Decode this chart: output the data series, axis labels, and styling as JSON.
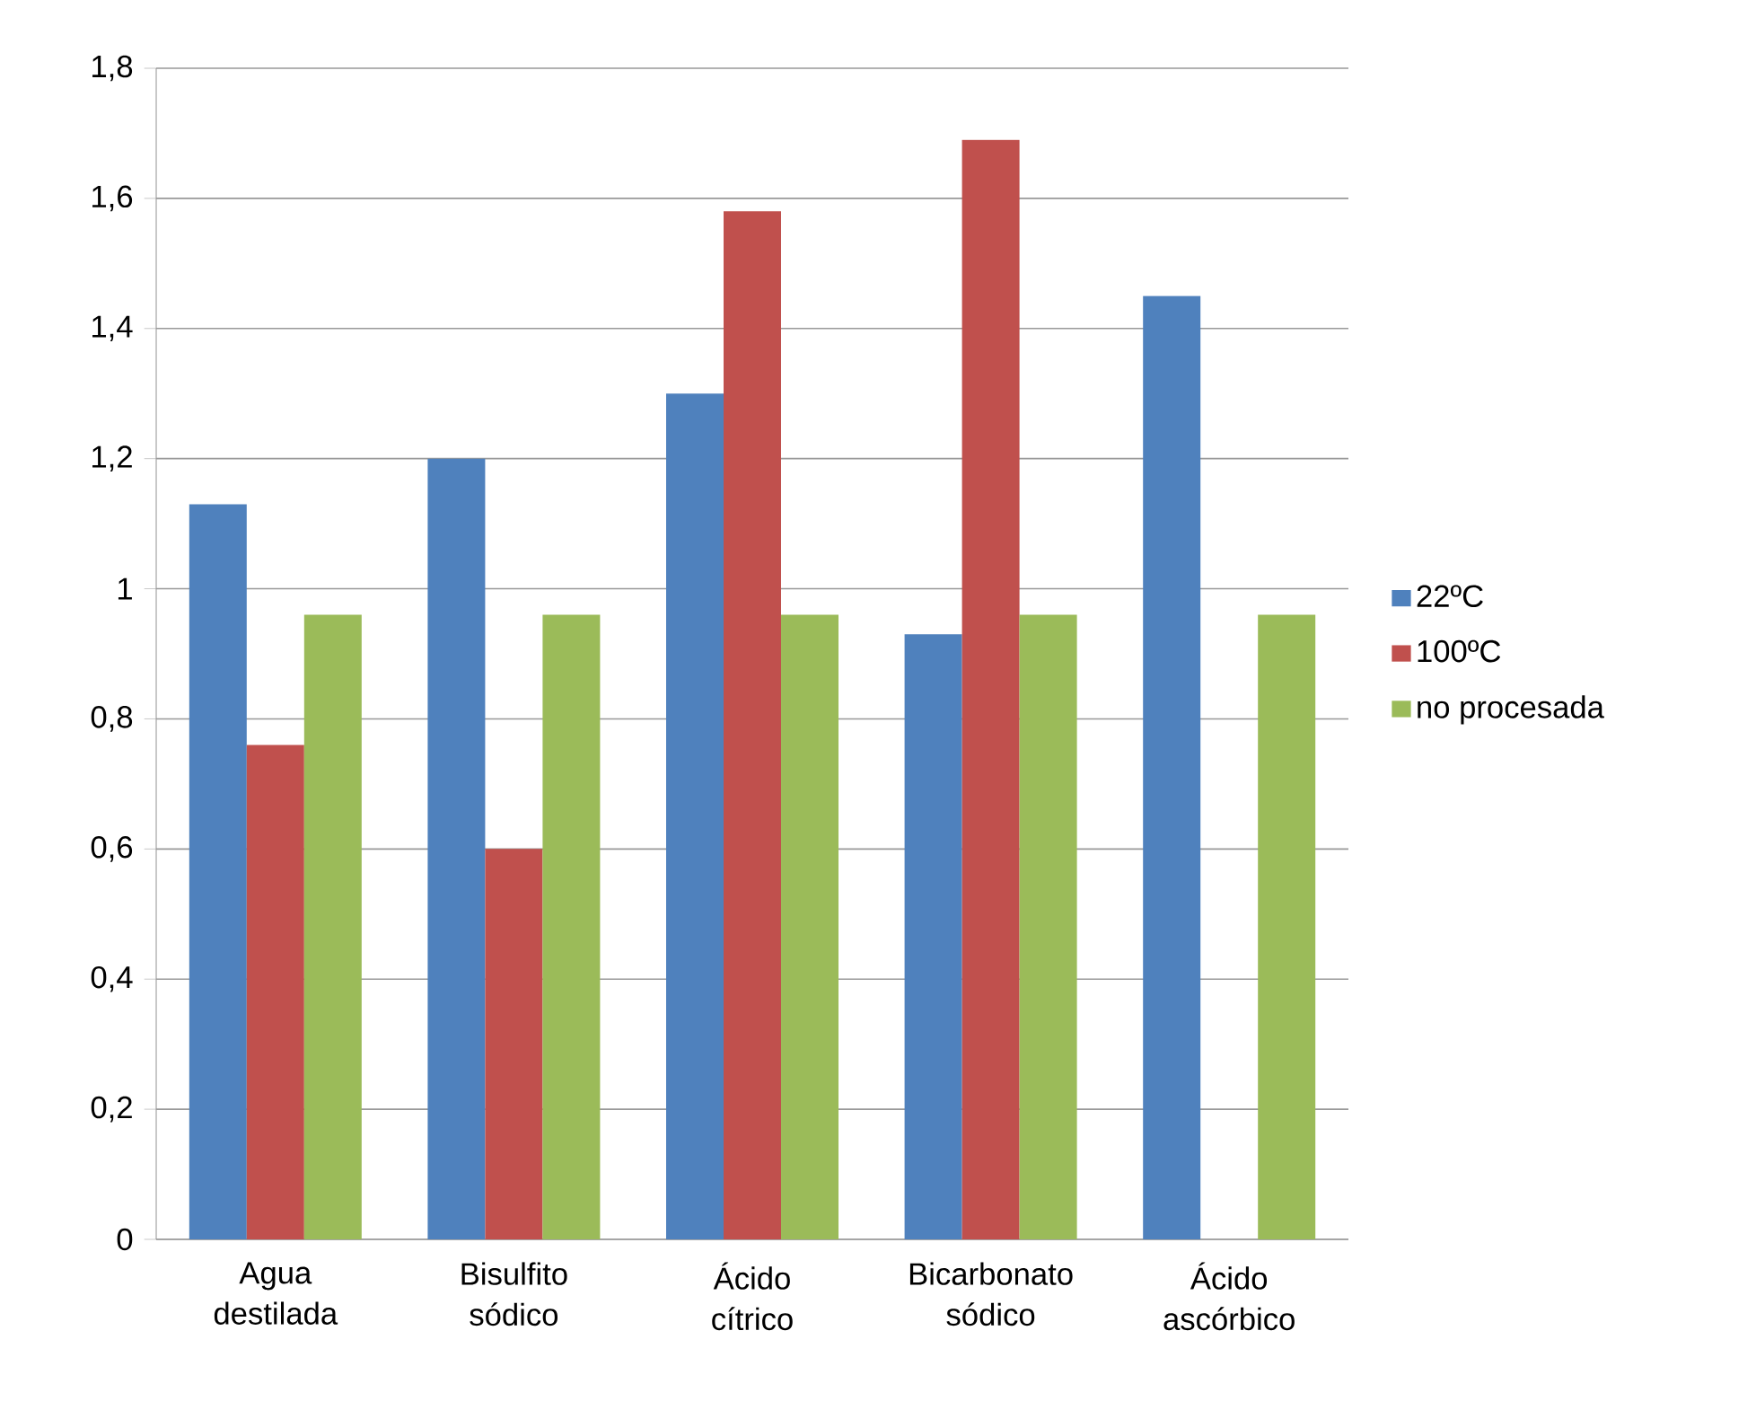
{
  "chart_data": {
    "type": "bar",
    "categories": [
      "Agua destilada",
      "Bisulfito sódico",
      "Ácido cítrico",
      "Bicarbonato sódico",
      "Ácido ascórbico"
    ],
    "series": [
      {
        "name": "22ºC",
        "color": "#4f81bd",
        "values": [
          1.13,
          1.2,
          1.3,
          0.93,
          1.45
        ]
      },
      {
        "name": "100ºC",
        "color": "#c0504d",
        "values": [
          0.76,
          0.6,
          1.58,
          1.69,
          null
        ]
      },
      {
        "name": "no procesada",
        "color": "#9bbb59",
        "values": [
          0.96,
          0.96,
          0.96,
          0.96,
          0.96
        ]
      }
    ],
    "ylim": [
      0,
      1.8
    ],
    "yticks": [
      0,
      {
        "value": 0.2,
        "label": "0,2"
      },
      {
        "value": 0.4,
        "label": "0,4"
      },
      {
        "value": 0.6,
        "label": "0,6"
      },
      {
        "value": 0.8,
        "label": "0,8"
      },
      1,
      {
        "value": 1.2,
        "label": "1,2"
      },
      {
        "value": 1.4,
        "label": "1,4"
      },
      {
        "value": 1.6,
        "label": "1,6"
      },
      {
        "value": 1.8,
        "label": "1,8"
      }
    ],
    "grid": "y",
    "legend": "right"
  }
}
